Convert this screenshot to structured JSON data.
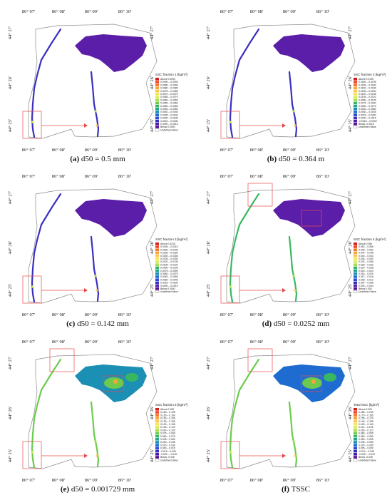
{
  "panels": [
    {
      "id": "a",
      "label": "(a)",
      "caption": "d50 = 0.5 mm",
      "legend_title": "SSC fraction 1 [kg/m³]",
      "legend_labels": [
        "Above 0.0093",
        "0.0090 – 0.0093",
        "0.0085 – 0.0090",
        "0.0080 – 0.0085",
        "0.0075 – 0.0080",
        "0.0070 – 0.0075",
        "0.0065 – 0.0070",
        "0.0060 – 0.0065",
        "0.0055 – 0.0060",
        "0.0050 – 0.0055",
        "0.0045 – 0.0050",
        "0.0040 – 0.0045",
        "0.0035 – 0.0040",
        "0.0030 – 0.0035",
        "0.0015 – 0.0030",
        "0.0000 – 0.0015",
        "Below 0.0000",
        "Undefined Value"
      ]
    },
    {
      "id": "b",
      "label": "(b)",
      "caption": "d50 = 0.364 m",
      "legend_title": "SSC fraction 2 [kg/m³]",
      "legend_labels": [
        "Above 0.0195",
        "0.0180 – 0.0195",
        "0.0165 – 0.0180",
        "0.0150 – 0.0165",
        "0.0135 – 0.0150",
        "0.0120 – 0.0135",
        "0.0105 – 0.0120",
        "0.0090 – 0.0105",
        "0.0075 – 0.0090",
        "0.0060 – 0.0075",
        "0.0045 – 0.0060",
        "0.0030 – 0.0045",
        "0.0015 – 0.0030",
        "0.0000 – 0.0015",
        "-0.0015 – 0.0000",
        "Below -0.0015",
        "Undefined Value"
      ]
    },
    {
      "id": "c",
      "label": "(c)",
      "caption": "d50 = 0.142 mm",
      "legend_title": "SSC fraction 3 [kg/m³]",
      "legend_labels": [
        "Above 0.0210",
        "0.0195 – 0.0210",
        "0.0180 – 0.0195",
        "0.0165 – 0.0180",
        "0.0150 – 0.0165",
        "0.0135 – 0.0150",
        "0.0120 – 0.0135",
        "0.0105 – 0.0120",
        "0.0090 – 0.0105",
        "0.0075 – 0.0090",
        "0.0060 – 0.0075",
        "0.0045 – 0.0060",
        "0.0030 – 0.0045",
        "0.0015 – 0.0030",
        "0.0000 – 0.0015",
        "Below 0.0000",
        "Undefined Value"
      ]
    },
    {
      "id": "d",
      "label": "(d)",
      "caption": "d50 = 0.0252 mm",
      "legend_title": "SSC fraction 4 [kg/m³]",
      "legend_labels": [
        "Above 0.056",
        "0.052 – 0.056",
        "0.048 – 0.052",
        "0.044 – 0.048",
        "0.040 – 0.044",
        "0.036 – 0.040",
        "0.032 – 0.036",
        "0.028 – 0.032",
        "0.024 – 0.028",
        "0.020 – 0.024",
        "0.016 – 0.020",
        "0.012 – 0.016",
        "0.008 – 0.012",
        "0.004 – 0.008",
        "0.000 – 0.004",
        "Below 0.000",
        "Undefined Value"
      ]
    },
    {
      "id": "e",
      "label": "(e)",
      "caption": "d50 = 0.001729 mm",
      "legend_title": "SSC fraction 5 [kg/m³]",
      "legend_labels": [
        "Above 0.195",
        "0.180 – 0.195",
        "0.165 – 0.180",
        "0.150 – 0.165",
        "0.135 – 0.150",
        "0.120 – 0.135",
        "0.105 – 0.120",
        "0.090 – 0.105",
        "0.075 – 0.090",
        "0.060 – 0.075",
        "0.045 – 0.060",
        "0.030 – 0.045",
        "0.015 – 0.030",
        "0.000 – 0.015",
        "-0.015 – 0.000",
        "-0.030 – -0.015",
        "Below -0.045",
        "Undefined Value"
      ]
    },
    {
      "id": "f",
      "label": "(f)",
      "caption": "TSSC",
      "legend_title": "Total SSC [kg/m³]",
      "legend_labels": [
        "Above 0.200",
        "0.185 – 0.200",
        "0.170 – 0.185",
        "0.155 – 0.170",
        "0.140 – 0.155",
        "0.125 – 0.140",
        "0.110 – 0.125",
        "0.095 – 0.110",
        "0.080 – 0.095",
        "0.065 – 0.080",
        "0.050 – 0.065",
        "0.035 – 0.050",
        "0.020 – 0.035",
        "0.005 – 0.020",
        "-0.010 – 0.005",
        "-0.025 – -0.010",
        "Below -0.025",
        "Undefined Value"
      ]
    }
  ],
  "axis": {
    "lon_ticks": [
      "86° 07'",
      "86° 08'",
      "86° 09'",
      "86° 10'"
    ],
    "lat_ticks": [
      "44° 27'",
      "44° 26'",
      "44° 25'"
    ]
  },
  "colors": {
    "scale": [
      "#d7191c",
      "#f2462a",
      "#f7762c",
      "#fba43a",
      "#fdc84e",
      "#f5e55a",
      "#d8ef57",
      "#a9df4f",
      "#6ccb4d",
      "#39b760",
      "#1ea58a",
      "#1c8fb4",
      "#1f6cd1",
      "#2d4bd2",
      "#3a2fbe",
      "#4b1fa6",
      "#5a0f96"
    ],
    "lake_low": "#5a1ea8",
    "river_low": "#3b2fbf",
    "boundary": "#8a8a8a",
    "highlight": "#e84a4a"
  }
}
